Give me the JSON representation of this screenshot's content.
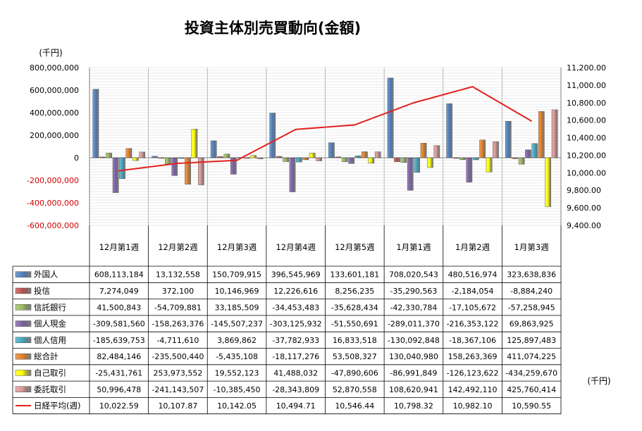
{
  "chart_data": {
    "type": "bar",
    "title": "投資主体別売買動向(金額)",
    "unit_left": "(千円)",
    "unit_right": "(千円)",
    "categories": [
      "12月第1週",
      "12月第2週",
      "12月第3週",
      "12月第4週",
      "12月第5週",
      "1月第1週",
      "1月第2週",
      "1月第3週"
    ],
    "ylim": [
      -600000000,
      800000000
    ],
    "y2lim": [
      9400,
      11200
    ],
    "yticks": [
      "800,000,000",
      "600,000,000",
      "400,000,000",
      "200,000,000",
      "0",
      "-200,000,000",
      "-400,000,000",
      "-600,000,000"
    ],
    "y2ticks": [
      "11,200.00",
      "11,000.00",
      "10,800.00",
      "10,600.00",
      "10,400.00",
      "10,200.00",
      "10,000.00",
      "9,800.00",
      "9,600.00",
      "9,400.00"
    ],
    "grid": true,
    "legend": "table-left",
    "series": [
      {
        "name": "外国人",
        "color": "#4a7fc1",
        "values": [
          608113184,
          13132558,
          150709915,
          396545969,
          133601181,
          708020543,
          480516974,
          323638836
        ],
        "labels": [
          "608,113,184",
          "13,132,558",
          "150,709,915",
          "396,545,969",
          "133,601,181",
          "708,020,543",
          "480,516,974",
          "323,638,836"
        ]
      },
      {
        "name": "投信",
        "color": "#c0504d",
        "values": [
          7274049,
          372100,
          10146969,
          12226616,
          8256235,
          -35290563,
          -2184054,
          -8884240
        ],
        "labels": [
          "7,274,049",
          "372,100",
          "10,146,969",
          "12,226,616",
          "8,256,235",
          "-35,290,563",
          "-2,184,054",
          "-8,884,240"
        ]
      },
      {
        "name": "信託銀行",
        "color": "#9bbb59",
        "values": [
          41500843,
          -54709881,
          33185509,
          -34453483,
          -35628434,
          -42330784,
          -17105672,
          -57258945
        ],
        "labels": [
          "41,500,843",
          "-54,709,881",
          "33,185,509",
          "-34,453,483",
          "-35,628,434",
          "-42,330,784",
          "-17,105,672",
          "-57,258,945"
        ]
      },
      {
        "name": "個人現金",
        "color": "#7a5fa6",
        "values": [
          -309581560,
          -158263376,
          -145507237,
          -303125932,
          -51550691,
          -289011370,
          -216353122,
          69863925
        ],
        "labels": [
          "-309,581,560",
          "-158,263,376",
          "-145,507,237",
          "-303,125,932",
          "-51,550,691",
          "-289,011,370",
          "-216,353,122",
          "69,863,925"
        ]
      },
      {
        "name": "個人信用",
        "color": "#3fa8c4",
        "values": [
          -185639753,
          -4711610,
          3869862,
          -37782933,
          16833518,
          -130092848,
          -18367106,
          125897483
        ],
        "labels": [
          "-185,639,753",
          "-4,711,610",
          "3,869,862",
          "-37,782,933",
          "16,833,518",
          "-130,092,848",
          "-18,367,106",
          "125,897,483"
        ]
      },
      {
        "name": "総合計",
        "color": "#e67f22",
        "values": [
          82484146,
          -235500440,
          -5435108,
          -18117276,
          53508327,
          130040980,
          158263369,
          411074225
        ],
        "labels": [
          "82,484,146",
          "-235,500,440",
          "-5,435,108",
          "-18,117,276",
          "53,508,327",
          "130,040,980",
          "158,263,369",
          "411,074,225"
        ]
      },
      {
        "name": "自己取引",
        "color": "#ffff00",
        "values": [
          -25431761,
          253973552,
          19552123,
          41488032,
          -47890606,
          -86991849,
          -126123622,
          -434259670
        ],
        "labels": [
          "-25,431,761",
          "253,973,552",
          "19,552,123",
          "41,488,032",
          "-47,890,606",
          "-86,991,849",
          "-126,123,622",
          "-434,259,670"
        ]
      },
      {
        "name": "委託取引",
        "color": "#d99694",
        "values": [
          50996478,
          -241143507,
          -10385450,
          -28343809,
          52870558,
          108620941,
          142492110,
          425760414
        ],
        "labels": [
          "50,996,478",
          "-241,143,507",
          "-10,385,450",
          "-28,343,809",
          "52,870,558",
          "108,620,941",
          "142,492,110",
          "425,760,414"
        ]
      }
    ],
    "line": {
      "name": "日経平均(週)",
      "color": "#e3211f",
      "values": [
        10022.59,
        10107.87,
        10142.05,
        10494.71,
        10546.44,
        10798.32,
        10982.1,
        10590.55
      ],
      "labels": [
        "10,022.59",
        "10,107.87",
        "10,142.05",
        "10,494.71",
        "10,546.44",
        "10,798.32",
        "10,982.10",
        "10,590.55"
      ]
    }
  }
}
